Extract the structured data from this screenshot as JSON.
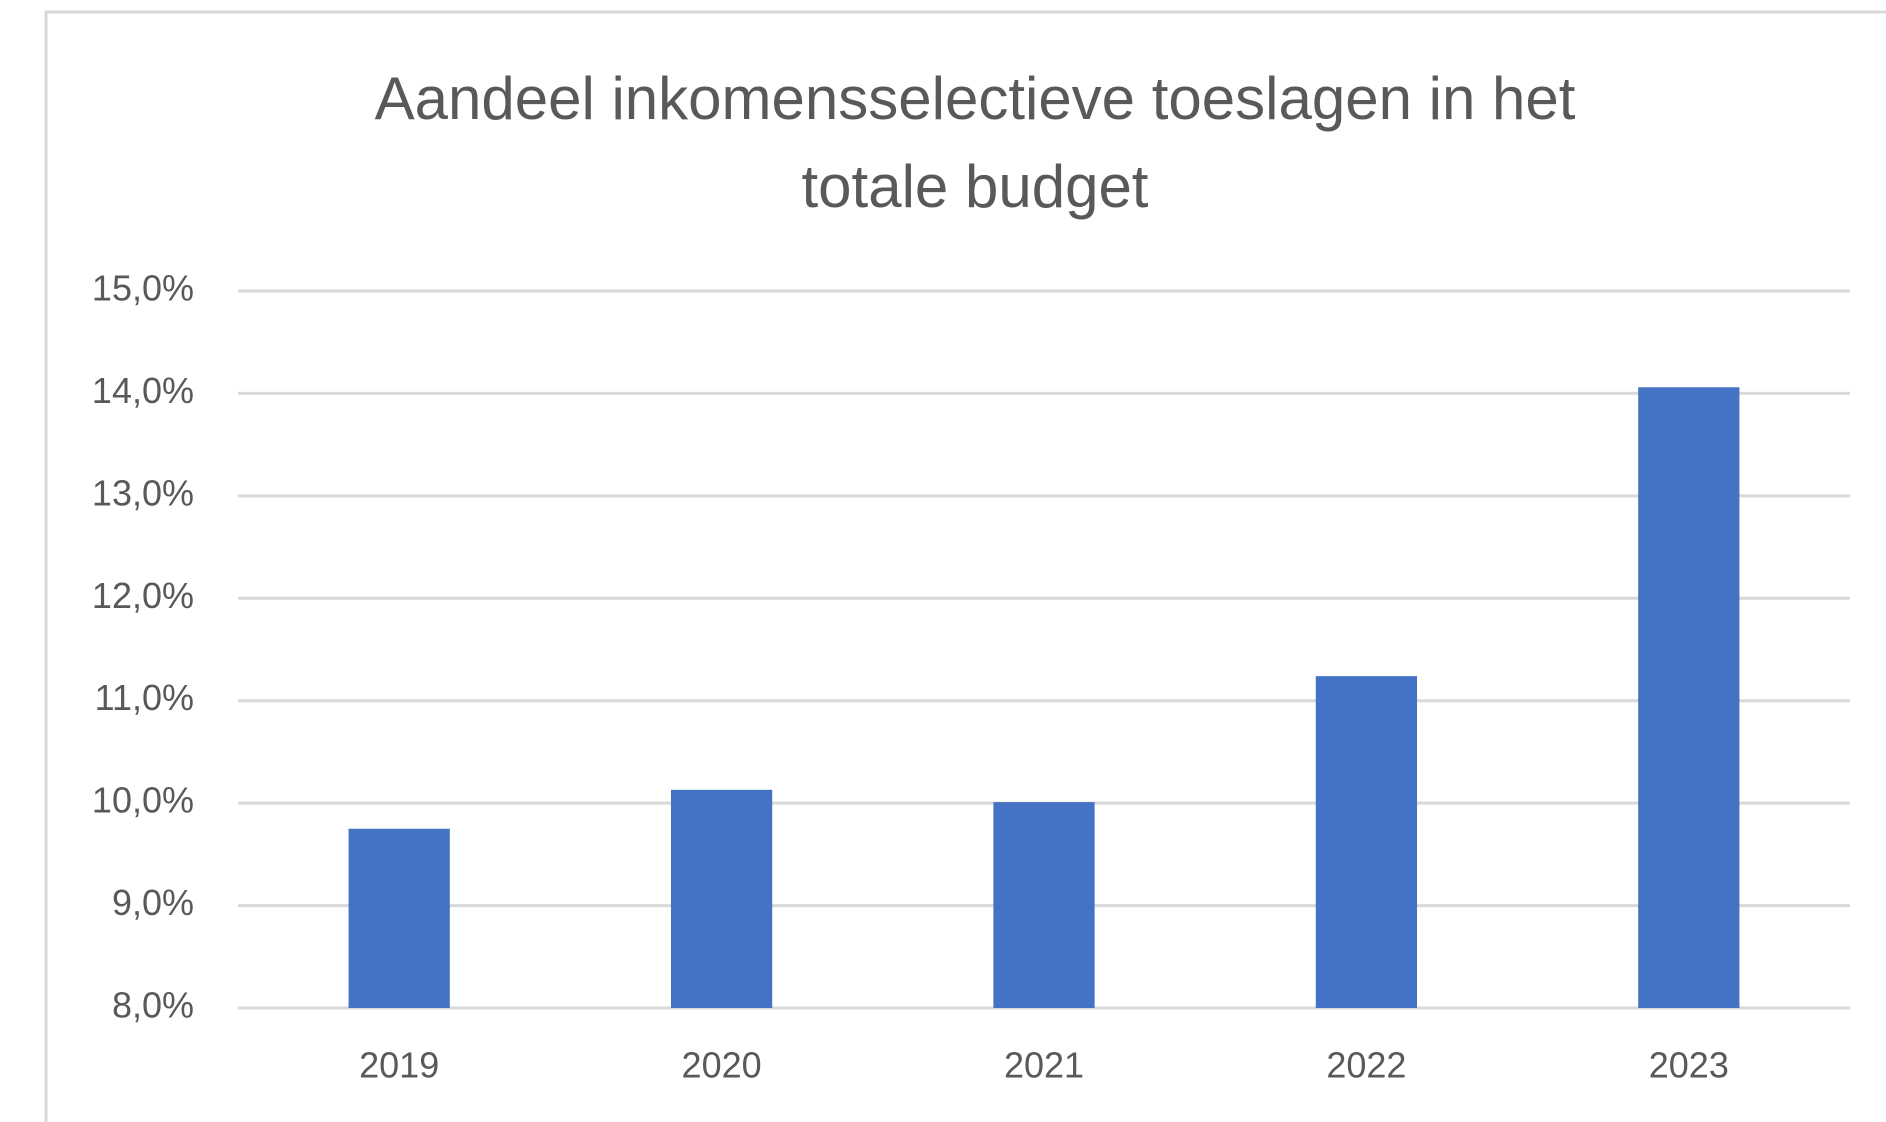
{
  "chart_data": {
    "type": "bar",
    "title": "Aandeel inkomensselectieve toeslagen in het totale budget",
    "categories": [
      "2019",
      "2020",
      "2021",
      "2022",
      "2023"
    ],
    "values": [
      9.75,
      10.13,
      10.01,
      11.24,
      14.06
    ],
    "color": "#4472c4",
    "ylim": [
      8,
      15
    ],
    "yticks": [
      {
        "value": 8,
        "label": "8,0%"
      },
      {
        "value": 9,
        "label": "9,0%"
      },
      {
        "value": 10,
        "label": "10,0%"
      },
      {
        "value": 11,
        "label": "11,0%"
      },
      {
        "value": 12,
        "label": "12,0%"
      },
      {
        "value": 13,
        "label": "13,0%"
      },
      {
        "value": 14,
        "label": "14,0%"
      },
      {
        "value": 15,
        "label": "15,0%"
      }
    ],
    "grid": true
  }
}
